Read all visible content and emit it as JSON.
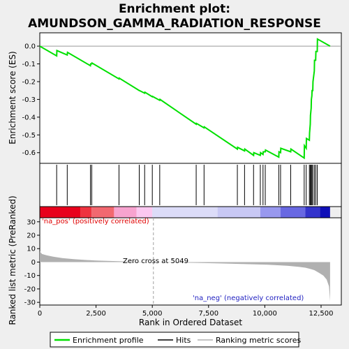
{
  "chart_data": {
    "type": "line",
    "title_line1": "Enrichment plot:",
    "title_line2": "AMUNDSON_GAMMA_RADIATION_RESPONSE",
    "top_panel": {
      "ylabel": "Enrichment score (ES)",
      "ylim": [
        -0.66,
        0.075
      ],
      "yticks": [
        0.0,
        -0.1,
        -0.2,
        -0.3,
        -0.4,
        -0.5,
        -0.6
      ],
      "ytick_labels": [
        "0.0",
        "-0.1",
        "-0.2",
        "-0.3",
        "-0.4",
        "-0.5",
        "-0.6"
      ],
      "enrichment_profile": {
        "name": "Enrichment profile",
        "color": "#00e000",
        "x": [
          0,
          750,
          760,
          1220,
          1230,
          2250,
          2260,
          2310,
          2320,
          3520,
          3530,
          4420,
          4430,
          4660,
          4670,
          5000,
          5010,
          5330,
          5340,
          6950,
          6960,
          7300,
          7310,
          8780,
          8790,
          9100,
          9110,
          9500,
          9510,
          9800,
          9810,
          9920,
          9930,
          10020,
          10030,
          10620,
          10630,
          10700,
          10710,
          11150,
          11160,
          11750,
          11760,
          11840,
          11850,
          11980,
          11990,
          12020,
          12030,
          12060,
          12070,
          12090,
          12100,
          12130,
          12140,
          12200,
          12210,
          12260,
          12270,
          12330,
          12340,
          12900
        ],
        "y": [
          0.0,
          -0.055,
          -0.025,
          -0.05,
          -0.035,
          -0.11,
          -0.1,
          -0.1,
          -0.095,
          -0.185,
          -0.18,
          -0.25,
          -0.25,
          -0.265,
          -0.26,
          -0.285,
          -0.283,
          -0.305,
          -0.3,
          -0.44,
          -0.435,
          -0.46,
          -0.455,
          -0.58,
          -0.57,
          -0.59,
          -0.58,
          -0.615,
          -0.6,
          -0.615,
          -0.6,
          -0.61,
          -0.595,
          -0.595,
          -0.585,
          -0.625,
          -0.595,
          -0.6,
          -0.575,
          -0.595,
          -0.58,
          -0.63,
          -0.56,
          -0.575,
          -0.52,
          -0.53,
          -0.49,
          -0.44,
          -0.39,
          -0.35,
          -0.3,
          -0.28,
          -0.25,
          -0.25,
          -0.2,
          -0.14,
          -0.08,
          -0.08,
          -0.03,
          -0.03,
          0.04,
          0.0
        ]
      }
    },
    "hits": {
      "name": "Hits",
      "positions": [
        750,
        1220,
        2250,
        2310,
        3520,
        4420,
        4660,
        5000,
        5330,
        6950,
        7300,
        8780,
        9100,
        9500,
        9800,
        9920,
        10020,
        10620,
        10700,
        11150,
        11750,
        11840,
        11980,
        12020,
        12060,
        12090,
        12130,
        12200,
        12260,
        12330
      ]
    },
    "ranking_bar": {
      "colors": [
        "#e8001c",
        "#ee3340",
        "#f26870",
        "#f7a3cf",
        "#fbc8f0",
        "#dcdcf8",
        "#c8c8f4",
        "#9898ee",
        "#6868e2",
        "#3434cc",
        "#1010b8"
      ],
      "boundaries": [
        0,
        1800,
        2300,
        3300,
        4300,
        5000,
        7900,
        9800,
        10700,
        11800,
        12450,
        12900
      ]
    },
    "bottom_panel": {
      "ylabel": "Ranked list metric (PreRanked)",
      "ylim": [
        -32,
        33
      ],
      "yticks": [
        30,
        20,
        10,
        0,
        -10,
        -20,
        -30
      ],
      "ytick_labels": [
        "30",
        "20",
        "10",
        "0",
        "-10",
        "-20",
        "-30"
      ],
      "ranking_metric": {
        "name": "Ranking metric scores",
        "color": "#b0b0b0",
        "x": [
          0,
          100,
          300,
          600,
          1000,
          1500,
          2000,
          2500,
          3000,
          3500,
          4000,
          4500,
          5049,
          6000,
          7000,
          8000,
          9000,
          10000,
          10500,
          11000,
          11500,
          11800,
          12000,
          12200,
          12400,
          12600,
          12750,
          12850,
          12900
        ],
        "y": [
          8,
          6,
          5,
          4,
          3,
          2.2,
          1.6,
          1.2,
          0.9,
          0.6,
          0.4,
          0.2,
          0,
          -0.3,
          -0.6,
          -1,
          -1.4,
          -1.9,
          -2.3,
          -2.8,
          -3.5,
          -4.2,
          -5,
          -6,
          -8,
          -10,
          -13,
          -18,
          -29
        ]
      },
      "zero_cross_x": 5049,
      "zero_cross_label": "Zero cross at 5049",
      "pos_label": "'na_pos' (positively correlated)",
      "neg_label": "'na_neg' (negatively correlated)",
      "pos_color": "#e00000",
      "neg_color": "#2020c0"
    },
    "xlabel": "Rank in Ordered Dataset",
    "xlim": [
      0,
      13400
    ],
    "xticks": [
      0,
      2500,
      5000,
      7500,
      10000,
      12500
    ],
    "xtick_labels": [
      "0",
      "2,500",
      "5,000",
      "7,500",
      "10,000",
      "12,500"
    ],
    "legend": {
      "placement": "bottom",
      "entries": [
        "Enrichment profile",
        "Hits",
        "Ranking metric scores"
      ]
    }
  }
}
